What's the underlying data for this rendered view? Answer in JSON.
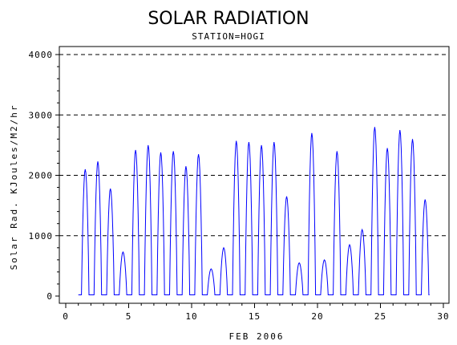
{
  "chart_data": {
    "type": "line",
    "title": "SOLAR RADIATION",
    "subtitle": "STATION=HOGI",
    "xlabel": "FEB 2006",
    "ylabel": "Solar Rad. KJoules/M2/hr",
    "xlim": [
      0,
      30
    ],
    "ylim": [
      0,
      4000
    ],
    "xticks": [
      0,
      5,
      10,
      15,
      20,
      25,
      30
    ],
    "yticks": [
      0,
      1000,
      2000,
      3000,
      4000
    ],
    "grid": "dashed horizontal at y ticks",
    "line_color": "#0000ff",
    "series": [
      {
        "daily_peaks": [
          {
            "x": 1.55,
            "peak": 2100
          },
          {
            "x": 2.55,
            "peak": 2230
          },
          {
            "x": 3.55,
            "peak": 1780
          },
          {
            "x": 4.55,
            "peak": 730
          },
          {
            "x": 5.55,
            "peak": 2420
          },
          {
            "x": 6.55,
            "peak": 2500
          },
          {
            "x": 7.55,
            "peak": 2380
          },
          {
            "x": 8.55,
            "peak": 2400
          },
          {
            "x": 9.55,
            "peak": 2150
          },
          {
            "x": 10.55,
            "peak": 2350
          },
          {
            "x": 11.55,
            "peak": 450
          },
          {
            "x": 12.55,
            "peak": 800
          },
          {
            "x": 13.55,
            "peak": 2570
          },
          {
            "x": 14.55,
            "peak": 2550
          },
          {
            "x": 15.55,
            "peak": 2500
          },
          {
            "x": 16.55,
            "peak": 2550
          },
          {
            "x": 17.55,
            "peak": 1650
          },
          {
            "x": 18.55,
            "peak": 550
          },
          {
            "x": 19.55,
            "peak": 2700
          },
          {
            "x": 20.55,
            "peak": 600
          },
          {
            "x": 21.55,
            "peak": 2400
          },
          {
            "x": 22.55,
            "peak": 850
          },
          {
            "x": 23.55,
            "peak": 1100
          },
          {
            "x": 24.55,
            "peak": 2800
          },
          {
            "x": 25.55,
            "peak": 2450
          },
          {
            "x": 26.55,
            "peak": 2750
          },
          {
            "x": 27.55,
            "peak": 2600
          },
          {
            "x": 28.55,
            "peak": 1600
          }
        ],
        "baseline": 20
      }
    ]
  }
}
